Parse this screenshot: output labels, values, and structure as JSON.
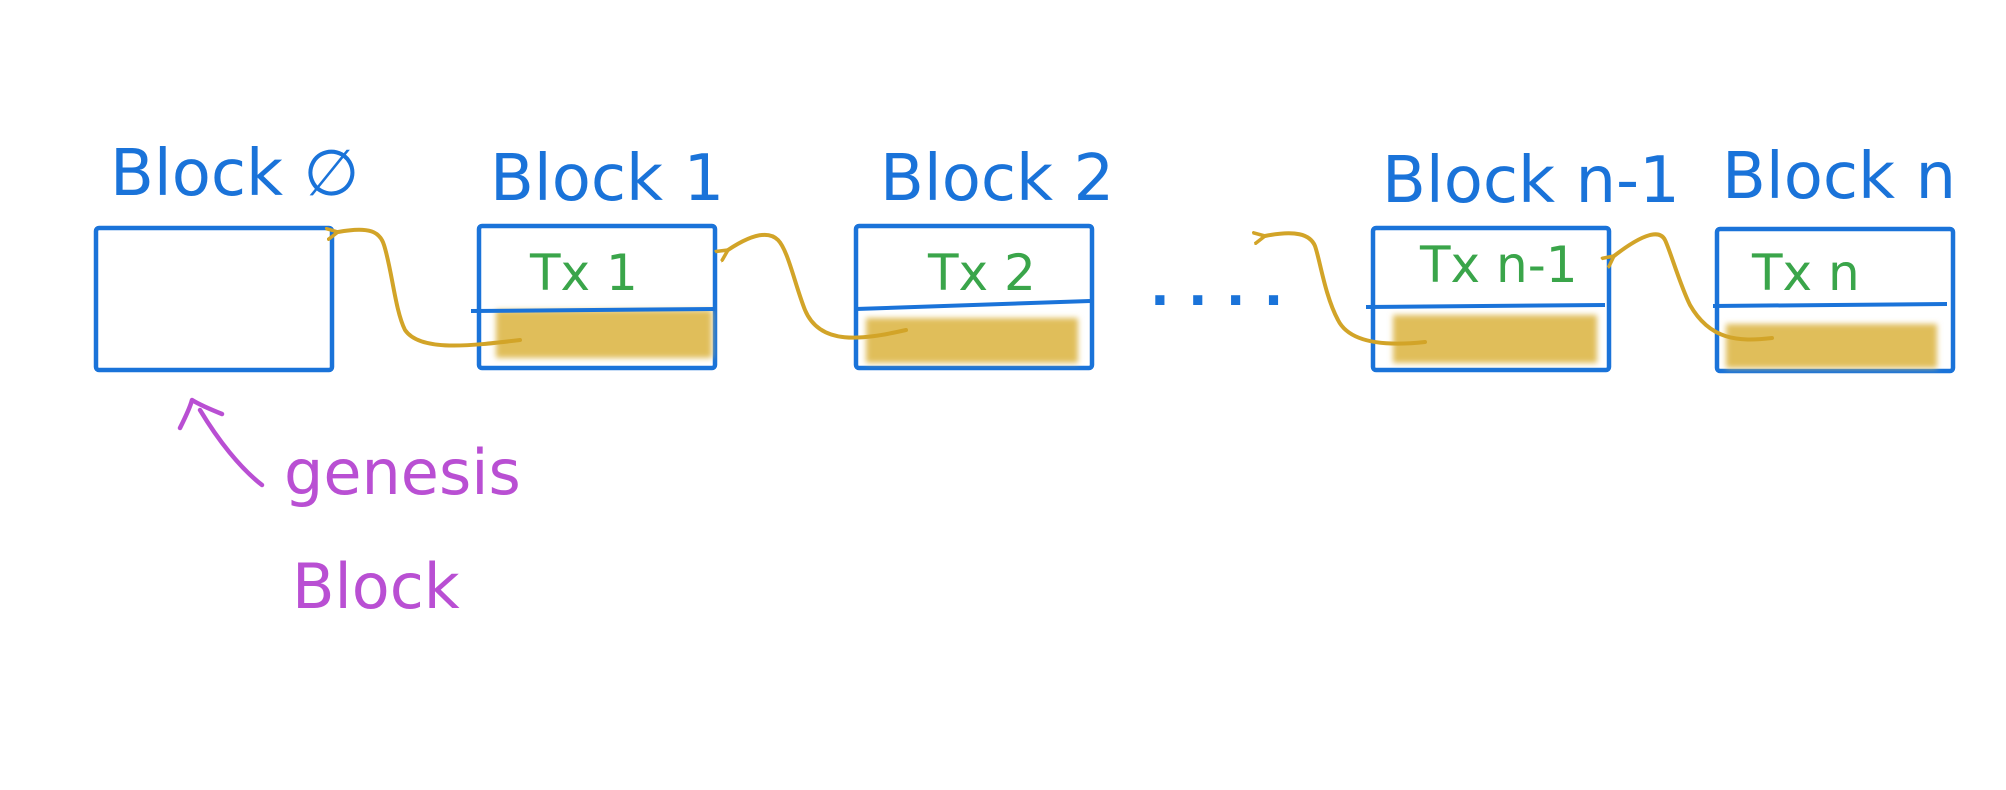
{
  "colors": {
    "blue": "#1a73d9",
    "green": "#3aa54a",
    "gold": "#d2a428",
    "hash_fill": "#e0be5a",
    "purple": "#b94fd3"
  },
  "blocks": [
    {
      "title": "Block ∅",
      "tx": ""
    },
    {
      "title": "Block 1",
      "tx": "Tx 1"
    },
    {
      "title": "Block 2",
      "tx": "Tx 2"
    },
    {
      "title": "Block n-1",
      "tx": "Tx n-1"
    },
    {
      "title": "Block n",
      "tx": "Tx n"
    }
  ],
  "ellipsis": "· · · ·",
  "genesis": {
    "line1": "genesis",
    "line2": "Block"
  }
}
